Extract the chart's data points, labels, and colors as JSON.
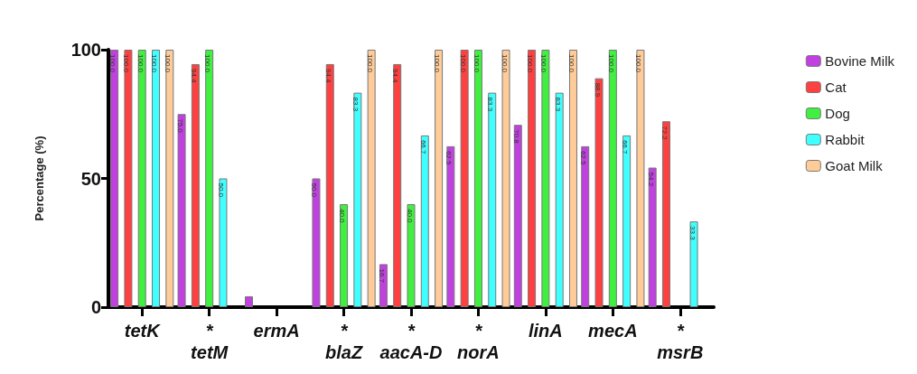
{
  "chart_data": {
    "type": "bar",
    "ylabel": "Percentage (%)",
    "categories": [
      "tetK",
      "*\ntetM",
      "ermA",
      "*\nblaZ",
      "*\naacA-D",
      "*\nnorA",
      "linA",
      "mecA",
      "*\nmsrB"
    ],
    "series": [
      {
        "name": "Bovine Milk",
        "color": "#c040e0",
        "values": [
          100,
          75.0,
          4.2,
          50.0,
          16.7,
          62.5,
          70.8,
          62.5,
          54.2
        ],
        "value_labels": [
          "100.0",
          "75.0",
          null,
          "50.0",
          "16.7",
          "62.5",
          "70.8",
          "62.5",
          "54.2"
        ]
      },
      {
        "name": "Cat",
        "color": "#ff4040",
        "values": [
          100,
          94.4,
          0,
          94.4,
          94.4,
          100,
          100,
          88.9,
          72.2
        ],
        "value_labels": [
          "100.0",
          "94.4",
          null,
          "94.4",
          "94.4",
          "100.0",
          "100.0",
          "88.9",
          "72.2"
        ]
      },
      {
        "name": "Dog",
        "color": "#40f040",
        "values": [
          100,
          100,
          0,
          40.0,
          40.0,
          100,
          100,
          100,
          0
        ],
        "value_labels": [
          "100.0",
          "100.0",
          null,
          "40.0",
          "40.0",
          "100.0",
          "100.0",
          "100.0",
          null
        ]
      },
      {
        "name": "Rabbit",
        "color": "#40ffff",
        "values": [
          100,
          50.0,
          0,
          83.3,
          66.7,
          83.3,
          83.3,
          66.7,
          33.3
        ],
        "value_labels": [
          "100.0",
          "50.0",
          null,
          "83.3",
          "66.7",
          "83.3",
          "83.3",
          "66.7",
          "33.3"
        ]
      },
      {
        "name": "Goat Milk",
        "color": "#ffcc99",
        "values": [
          100,
          0,
          0,
          100,
          100,
          100,
          100,
          100,
          0
        ],
        "value_labels": [
          "100.0",
          null,
          null,
          "100.0",
          "100.0",
          "100.0",
          "100.0",
          "100.0",
          null
        ]
      }
    ],
    "ylim": [
      0,
      100
    ],
    "yticks": [
      0,
      50,
      100
    ],
    "grid": false,
    "legend": "top right"
  }
}
